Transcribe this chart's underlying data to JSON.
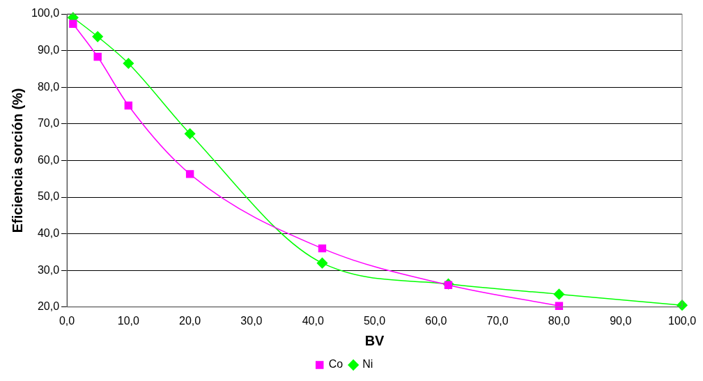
{
  "chart_data": {
    "type": "line",
    "xlabel": "BV",
    "ylabel": "Eficiencia sorción (%)",
    "xlim": [
      0,
      100
    ],
    "ylim": [
      20,
      100
    ],
    "xticks": [
      {
        "value": 0,
        "label": "0,0"
      },
      {
        "value": 10,
        "label": "10,0"
      },
      {
        "value": 20,
        "label": "20,0"
      },
      {
        "value": 30,
        "label": "30,0"
      },
      {
        "value": 40,
        "label": "40,0"
      },
      {
        "value": 50,
        "label": "50,0"
      },
      {
        "value": 60,
        "label": "60,0"
      },
      {
        "value": 70,
        "label": "70,0"
      },
      {
        "value": 80,
        "label": "80,0"
      },
      {
        "value": 90,
        "label": "90,0"
      },
      {
        "value": 100,
        "label": "100,0"
      }
    ],
    "yticks": [
      {
        "value": 20,
        "label": "20,0"
      },
      {
        "value": 30,
        "label": "30,0"
      },
      {
        "value": 40,
        "label": "40,0"
      },
      {
        "value": 50,
        "label": "50,0"
      },
      {
        "value": 60,
        "label": "60,0"
      },
      {
        "value": 70,
        "label": "70,0"
      },
      {
        "value": 80,
        "label": "80,0"
      },
      {
        "value": 90,
        "label": "90,0"
      },
      {
        "value": 100,
        "label": "100,0"
      }
    ],
    "grid": "y",
    "legend": "bottom",
    "series": [
      {
        "name": "Ni",
        "color": "#00ff00",
        "marker": "diamond",
        "x": [
          1,
          5,
          10,
          20,
          41.5,
          62,
          80,
          100
        ],
        "values": [
          99,
          93.8,
          86.5,
          67.3,
          32,
          26.3,
          23.5,
          20.5
        ]
      },
      {
        "name": "Co",
        "color": "#ff00ff",
        "marker": "square",
        "x": [
          1,
          5,
          10,
          20,
          41.5,
          62,
          80
        ],
        "values": [
          97.3,
          88.3,
          75,
          56.3,
          36,
          26,
          20.3
        ]
      }
    ]
  }
}
